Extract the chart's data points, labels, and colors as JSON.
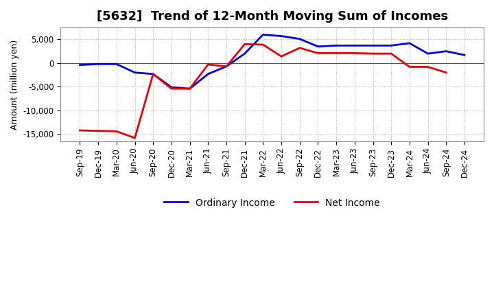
{
  "title": "[5632]  Trend of 12-Month Moving Sum of Incomes",
  "ylabel": "Amount (million yen)",
  "x_labels": [
    "Sep-19",
    "Dec-19",
    "Mar-20",
    "Jun-20",
    "Sep-20",
    "Dec-20",
    "Mar-21",
    "Jun-21",
    "Sep-21",
    "Dec-21",
    "Mar-22",
    "Jun-22",
    "Sep-22",
    "Dec-22",
    "Mar-23",
    "Jun-23",
    "Sep-23",
    "Dec-23",
    "Mar-24",
    "Jun-24",
    "Sep-24",
    "Dec-24"
  ],
  "ordinary_income": [
    -400,
    -200,
    -200,
    -2000,
    -2300,
    -5100,
    -5400,
    -2300,
    -700,
    2000,
    6000,
    5700,
    5100,
    3500,
    3700,
    3700,
    3700,
    3700,
    4200,
    2000,
    2500,
    1700
  ],
  "net_income": [
    -14200,
    -14300,
    -14400,
    -15800,
    -2300,
    -5400,
    -5400,
    -300,
    -700,
    4000,
    3900,
    1400,
    3200,
    2100,
    2100,
    2100,
    2000,
    2000,
    -800,
    -800,
    -2000,
    null
  ],
  "ordinary_color": "#0000ee",
  "net_color": "#ee0000",
  "ylim": [
    -16500,
    7500
  ],
  "yticks": [
    -15000,
    -10000,
    -5000,
    0,
    5000
  ],
  "background_color": "#ffffff",
  "grid_color": "#aaaaaa",
  "title_fontsize": 13,
  "axis_fontsize": 9,
  "tick_fontsize": 8.5,
  "legend_fontsize": 10,
  "linewidth": 2.0
}
